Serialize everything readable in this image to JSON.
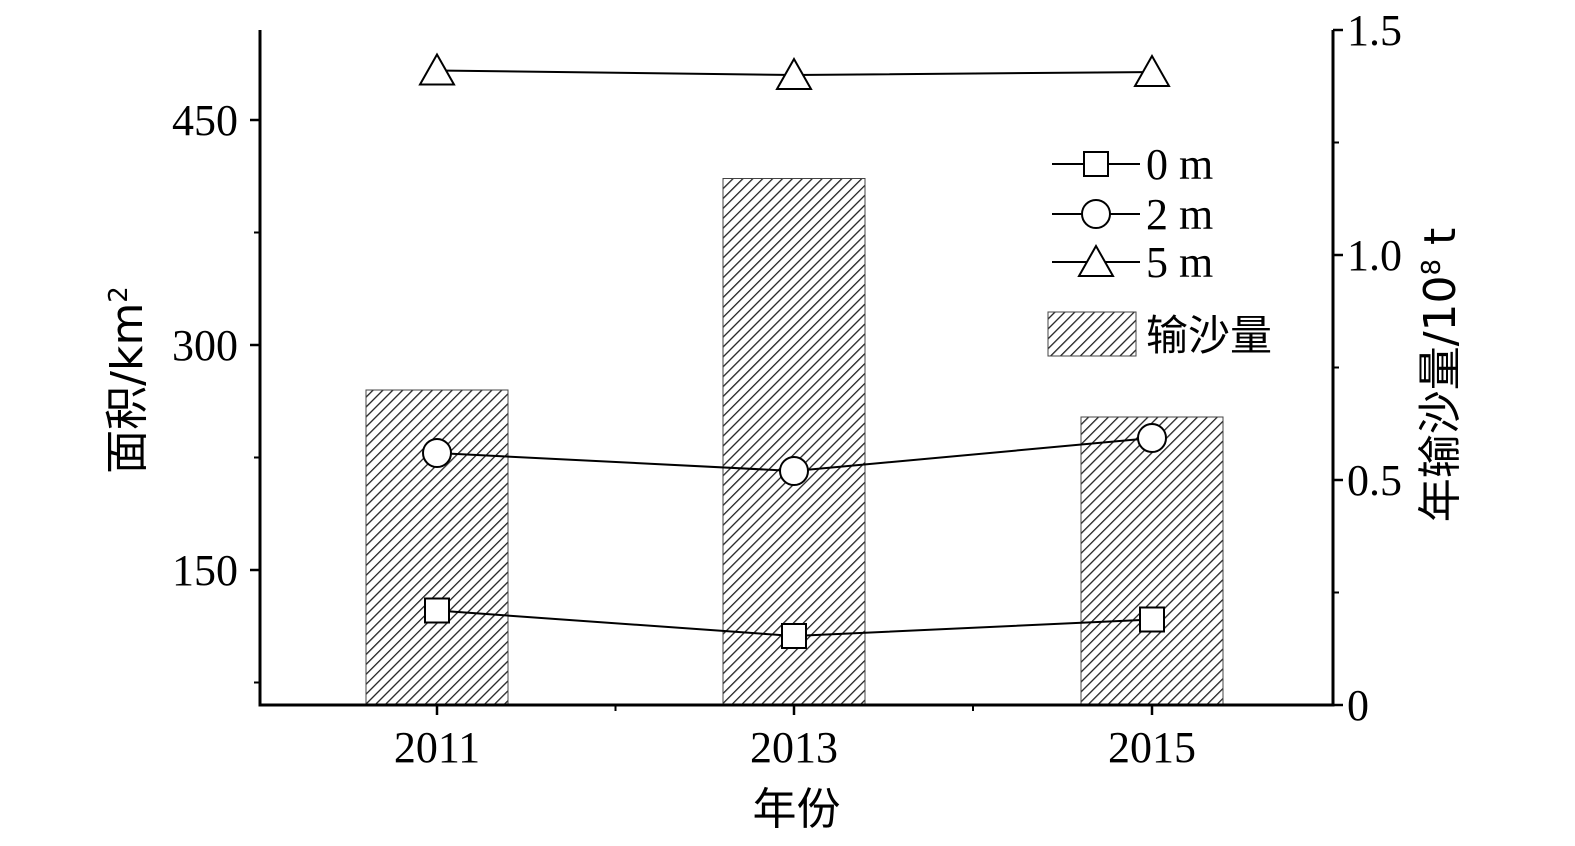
{
  "chart_data": {
    "type": "bar",
    "categories": [
      "2011",
      "2013",
      "2015"
    ],
    "xlabel": "年份",
    "ylabel_left": {
      "text": "面积/km",
      "sup": "2"
    },
    "ylabel_right": {
      "text": "年输沙量/10",
      "sup": "8",
      "suffix": " t"
    },
    "left_axis": {
      "ylim": [
        60,
        510
      ],
      "ticks": [
        150,
        300,
        450
      ],
      "minor_ticks": [
        75,
        225,
        375
      ]
    },
    "right_axis": {
      "ylim": [
        0,
        1.5
      ],
      "ticks": [
        0,
        0.5,
        1.0,
        1.5
      ],
      "tick_labels": [
        "0",
        "0.5",
        "1.0",
        "1.5"
      ],
      "minor_ticks": [
        0.25,
        0.75,
        1.25
      ]
    },
    "bars": {
      "name": "输沙量",
      "axis": "right",
      "values": [
        0.7,
        1.17,
        0.64
      ]
    },
    "series": [
      {
        "name": "0 m",
        "marker": "square",
        "axis": "left",
        "values": [
          123,
          106,
          117
        ]
      },
      {
        "name": "2 m",
        "marker": "circle",
        "axis": "left",
        "values": [
          228,
          216,
          238
        ]
      },
      {
        "name": "5 m",
        "marker": "triangle",
        "axis": "left",
        "values": [
          483,
          480,
          482
        ]
      }
    ],
    "legend_position": "top-right",
    "grid": false
  }
}
